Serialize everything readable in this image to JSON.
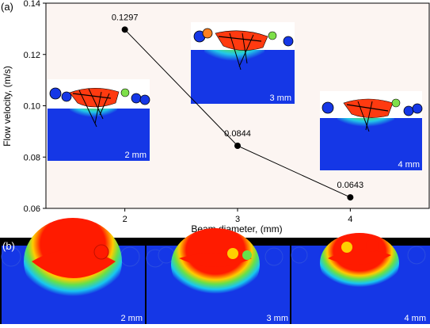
{
  "panel_a_label": "(a)",
  "panel_b_label": "(b)",
  "colors": {
    "plot_background": "#fcf5f2",
    "melt_blue": "#1537e6",
    "melt_red": "#ff1b00",
    "marker": "#000000",
    "line": "#000000"
  },
  "chart_data": {
    "type": "line",
    "title": "",
    "xlabel": "Beam diameter, (mm)",
    "ylabel": "Flow velocity, (m/s)",
    "x": [
      2,
      3,
      4
    ],
    "x_tick_labels": [
      "2",
      "3",
      "4"
    ],
    "y_tick_labels": [
      "0.06",
      "0.08",
      "0.10",
      "0.12",
      "0.14"
    ],
    "y_ticks": [
      0.06,
      0.08,
      0.1,
      0.12,
      0.14
    ],
    "xlim": [
      1.3,
      4.7
    ],
    "ylim": [
      0.06,
      0.14
    ],
    "grid": false,
    "series": [
      {
        "values": [
          0.1297,
          0.0844,
          0.0643
        ],
        "data_labels": [
          "0.1297",
          "0.0844",
          "0.0643"
        ]
      }
    ]
  },
  "insets_a": [
    {
      "label": "2 mm",
      "icon": "melt-pool-flow-inset"
    },
    {
      "label": "3 mm",
      "icon": "melt-pool-flow-inset"
    },
    {
      "label": "4 mm",
      "icon": "melt-pool-flow-inset"
    }
  ],
  "panels_b": [
    {
      "label": "2 mm",
      "icon": "melt-pool-temperature-panel"
    },
    {
      "label": "3 mm",
      "icon": "melt-pool-temperature-panel"
    },
    {
      "label": "4 mm",
      "icon": "melt-pool-temperature-panel"
    }
  ]
}
